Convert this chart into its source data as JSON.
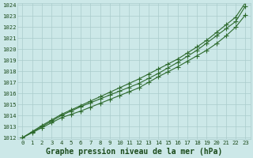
{
  "title": "Graphe pression niveau de la mer (hPa)",
  "xlabel_hours": [
    0,
    1,
    2,
    3,
    4,
    5,
    6,
    7,
    8,
    9,
    10,
    11,
    12,
    13,
    14,
    15,
    16,
    17,
    18,
    19,
    20,
    21,
    22,
    23
  ],
  "line1": [
    1012.0,
    1012.45,
    1012.9,
    1013.35,
    1013.8,
    1014.1,
    1014.4,
    1014.75,
    1015.1,
    1015.45,
    1015.8,
    1016.15,
    1016.5,
    1017.0,
    1017.5,
    1017.95,
    1018.4,
    1018.9,
    1019.4,
    1019.9,
    1020.5,
    1021.2,
    1022.0,
    1023.1
  ],
  "line2": [
    1012.0,
    1012.5,
    1013.0,
    1013.5,
    1014.0,
    1014.4,
    1014.8,
    1015.15,
    1015.5,
    1015.85,
    1016.2,
    1016.55,
    1016.9,
    1017.35,
    1017.8,
    1018.3,
    1018.8,
    1019.35,
    1019.9,
    1020.55,
    1021.2,
    1021.85,
    1022.5,
    1023.9
  ],
  "line3": [
    1012.0,
    1012.55,
    1013.1,
    1013.6,
    1014.1,
    1014.5,
    1014.9,
    1015.3,
    1015.7,
    1016.1,
    1016.5,
    1016.9,
    1017.3,
    1017.75,
    1018.2,
    1018.65,
    1019.1,
    1019.65,
    1020.2,
    1020.8,
    1021.5,
    1022.2,
    1022.9,
    1024.2
  ],
  "line_color": "#2d6a2d",
  "marker_color": "#2d6a2d",
  "bg_color": "#cce8e8",
  "grid_color": "#aacccc",
  "axis_label_color": "#1a4a1a",
  "ylim_min": 1012,
  "ylim_max": 1024,
  "xlim_min": 0,
  "xlim_max": 23,
  "yticks": [
    1012,
    1013,
    1014,
    1015,
    1016,
    1017,
    1018,
    1019,
    1020,
    1021,
    1022,
    1023,
    1024
  ],
  "xticks": [
    0,
    1,
    2,
    3,
    4,
    5,
    6,
    7,
    8,
    9,
    10,
    11,
    12,
    13,
    14,
    15,
    16,
    17,
    18,
    19,
    20,
    21,
    22,
    23
  ],
  "title_fontsize": 7.0,
  "tick_fontsize": 5.2,
  "marker_size": 2.0,
  "linewidth": 0.8
}
